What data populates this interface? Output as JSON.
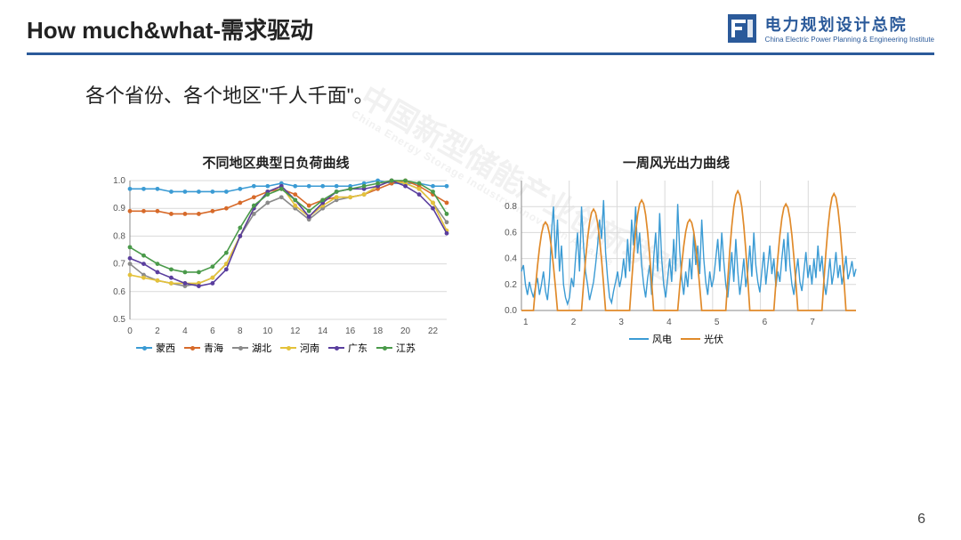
{
  "header": {
    "title": "How much&what-需求驱动",
    "logo_cn": "电力规划设计总院",
    "logo_en": "China Electric Power Planning & Engineering Institute",
    "logo_fill": "#2b5a9a"
  },
  "subtitle": "各个省份、各个地区\"千人千面\"。",
  "watermark": {
    "cn": "中国新型储能产业创新联盟",
    "en": "China Energy Storage Industry Innovation Alliance"
  },
  "page_number": "6",
  "chart1": {
    "title": "不同地区典型日负荷曲线",
    "type": "line",
    "x": [
      0,
      1,
      2,
      3,
      4,
      5,
      6,
      7,
      8,
      9,
      10,
      11,
      12,
      13,
      14,
      15,
      16,
      17,
      18,
      19,
      20,
      21,
      22,
      23
    ],
    "xlim": [
      0,
      23
    ],
    "xtick_step": 2,
    "ylim": [
      0.5,
      1.0
    ],
    "ytick_step": 0.1,
    "grid_color": "#d9d9d9",
    "background_color": "#ffffff",
    "axis_color": "#888888",
    "label_fontsize": 10,
    "line_width": 1.6,
    "marker_radius": 2.4,
    "series": [
      {
        "name": "蒙西",
        "color": "#3b9bd4",
        "marker": "circle",
        "y": [
          0.97,
          0.97,
          0.97,
          0.96,
          0.96,
          0.96,
          0.96,
          0.96,
          0.97,
          0.98,
          0.98,
          0.99,
          0.98,
          0.98,
          0.98,
          0.98,
          0.98,
          0.99,
          1.0,
          0.99,
          0.99,
          0.99,
          0.98,
          0.98
        ]
      },
      {
        "name": "青海",
        "color": "#d76a2a",
        "marker": "circle",
        "y": [
          0.89,
          0.89,
          0.89,
          0.88,
          0.88,
          0.88,
          0.89,
          0.9,
          0.92,
          0.94,
          0.96,
          0.97,
          0.95,
          0.91,
          0.93,
          0.94,
          0.94,
          0.95,
          0.97,
          0.99,
          1.0,
          0.98,
          0.95,
          0.92
        ]
      },
      {
        "name": "湖北",
        "color": "#8a8a8a",
        "marker": "circle",
        "y": [
          0.7,
          0.66,
          0.64,
          0.63,
          0.62,
          0.63,
          0.65,
          0.7,
          0.8,
          0.88,
          0.92,
          0.94,
          0.9,
          0.86,
          0.9,
          0.93,
          0.94,
          0.95,
          0.98,
          1.0,
          0.99,
          0.97,
          0.92,
          0.85
        ]
      },
      {
        "name": "河南",
        "color": "#e4c23a",
        "marker": "circle",
        "y": [
          0.66,
          0.65,
          0.64,
          0.63,
          0.63,
          0.63,
          0.65,
          0.7,
          0.8,
          0.9,
          0.96,
          0.98,
          0.91,
          0.87,
          0.91,
          0.94,
          0.94,
          0.95,
          0.98,
          1.0,
          0.99,
          0.97,
          0.92,
          0.82
        ]
      },
      {
        "name": "广东",
        "color": "#5a3e9e",
        "marker": "circle",
        "y": [
          0.72,
          0.7,
          0.67,
          0.65,
          0.63,
          0.62,
          0.63,
          0.68,
          0.8,
          0.9,
          0.96,
          0.98,
          0.93,
          0.87,
          0.92,
          0.96,
          0.97,
          0.97,
          0.98,
          1.0,
          0.98,
          0.95,
          0.9,
          0.81
        ]
      },
      {
        "name": "江苏",
        "color": "#4a9a4a",
        "marker": "circle",
        "y": [
          0.76,
          0.73,
          0.7,
          0.68,
          0.67,
          0.67,
          0.69,
          0.74,
          0.83,
          0.91,
          0.95,
          0.97,
          0.93,
          0.89,
          0.93,
          0.96,
          0.97,
          0.98,
          0.99,
          1.0,
          1.0,
          0.99,
          0.96,
          0.88
        ]
      }
    ]
  },
  "chart2": {
    "title": "一周风光出力曲线",
    "type": "line",
    "xlim": [
      1,
      8
    ],
    "xtick_step": 1,
    "ylim": [
      0.0,
      1.0
    ],
    "yticks": [
      0.0,
      0.2,
      0.4,
      0.6,
      0.8
    ],
    "grid_color": "#d9d9d9",
    "axis_color": "#888888",
    "label_fontsize": 10,
    "line_width": 1.4,
    "series": [
      {
        "name": "风电",
        "color": "#3b9bd4",
        "y": [
          0.3,
          0.35,
          0.2,
          0.12,
          0.22,
          0.15,
          0.1,
          0.18,
          0.25,
          0.12,
          0.2,
          0.3,
          0.15,
          0.08,
          0.25,
          0.6,
          0.8,
          0.4,
          0.7,
          0.3,
          0.5,
          0.2,
          0.1,
          0.05,
          0.1,
          0.25,
          0.18,
          0.4,
          0.6,
          0.3,
          0.8,
          0.5,
          0.3,
          0.2,
          0.08,
          0.15,
          0.22,
          0.35,
          0.5,
          0.7,
          0.55,
          0.85,
          0.45,
          0.25,
          0.1,
          0.06,
          0.15,
          0.22,
          0.3,
          0.18,
          0.26,
          0.4,
          0.25,
          0.55,
          0.3,
          0.7,
          0.5,
          0.8,
          0.44,
          0.6,
          0.35,
          0.2,
          0.1,
          0.25,
          0.35,
          0.12,
          0.4,
          0.6,
          0.3,
          0.75,
          0.4,
          0.2,
          0.1,
          0.25,
          0.4,
          0.22,
          0.55,
          0.3,
          0.82,
          0.46,
          0.25,
          0.12,
          0.3,
          0.18,
          0.4,
          0.24,
          0.6,
          0.35,
          0.5,
          0.28,
          0.7,
          0.4,
          0.22,
          0.12,
          0.3,
          0.18,
          0.25,
          0.4,
          0.55,
          0.3,
          0.6,
          0.38,
          0.2,
          0.1,
          0.28,
          0.45,
          0.22,
          0.55,
          0.3,
          0.12,
          0.25,
          0.4,
          0.18,
          0.3,
          0.5,
          0.26,
          0.6,
          0.35,
          0.22,
          0.14,
          0.3,
          0.45,
          0.2,
          0.35,
          0.5,
          0.28,
          0.4,
          0.18,
          0.3,
          0.22,
          0.4,
          0.55,
          0.3,
          0.6,
          0.35,
          0.2,
          0.12,
          0.28,
          0.4,
          0.22,
          0.15,
          0.3,
          0.45,
          0.25,
          0.35,
          0.2,
          0.4,
          0.25,
          0.5,
          0.3,
          0.42,
          0.22,
          0.12,
          0.25,
          0.4,
          0.2,
          0.3,
          0.45,
          0.25,
          0.35,
          0.2,
          0.3,
          0.42,
          0.24,
          0.3,
          0.38,
          0.26,
          0.32
        ]
      },
      {
        "name": "光伏",
        "color": "#e08a2a",
        "pattern": "solar_week",
        "peaks": [
          0.68,
          0.78,
          0.85,
          0.7,
          0.92,
          0.82,
          0.9
        ]
      }
    ]
  }
}
